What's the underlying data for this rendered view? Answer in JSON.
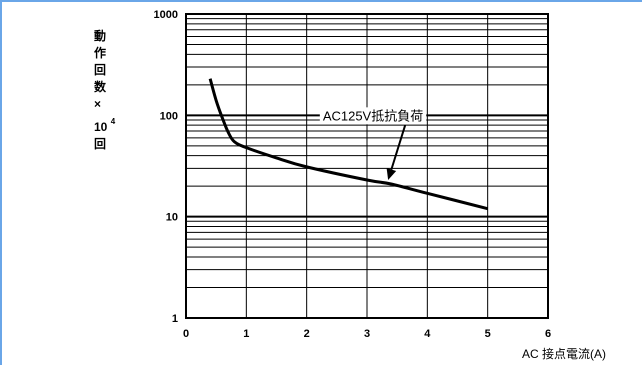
{
  "chart_data": {
    "type": "line",
    "title": "",
    "xlabel": "AC 接点電流(A)",
    "ylabel_lines": [
      "動",
      "作",
      "回",
      "数",
      "×"
    ],
    "ylabel_base": "10",
    "ylabel_exp": "4",
    "ylabel_tail": "回",
    "x_ticks": [
      "0",
      "1",
      "2",
      "3",
      "4",
      "5",
      "6"
    ],
    "y_ticks": [
      "1",
      "10",
      "100",
      "1000"
    ],
    "xlim": [
      0,
      6
    ],
    "ylim": [
      1,
      1000
    ],
    "yscale": "log",
    "grid": true,
    "series": [
      {
        "name": "AC125V抵抗負荷",
        "x": [
          0.4,
          0.5,
          0.6,
          0.7,
          0.8,
          1.0,
          1.5,
          2.0,
          3.0,
          3.4,
          4.0,
          5.0
        ],
        "y": [
          230,
          140,
          95,
          68,
          55,
          48,
          38,
          31,
          23,
          21,
          17,
          12
        ]
      }
    ],
    "annotation": {
      "text": "AC125V抵抗負荷",
      "x": 3.35,
      "y": 21
    }
  }
}
